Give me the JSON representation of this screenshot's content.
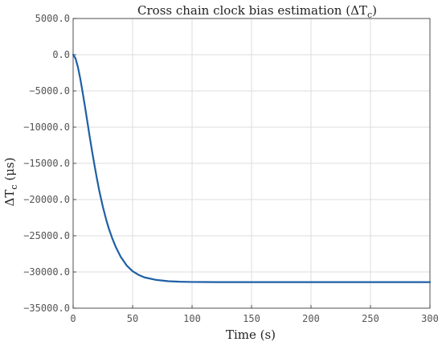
{
  "chart_data": {
    "type": "line",
    "title": "Cross chain clock bias estimation (ΔT_c)",
    "title_parts": {
      "prefix": "Cross chain clock bias estimation (ΔT",
      "sub": "c",
      "suffix": ")"
    },
    "xlabel": "Time (s)",
    "ylabel": "ΔT_c (μs)",
    "ylabel_parts": {
      "prefix": "ΔT",
      "sub": "c",
      "suffix": " (μs)"
    },
    "xlim": [
      0,
      300
    ],
    "ylim": [
      -35000,
      5000
    ],
    "grid": true,
    "x_ticks": [
      0,
      50,
      100,
      150,
      200,
      250,
      300
    ],
    "x_tick_labels": [
      "0",
      "50",
      "100",
      "150",
      "200",
      "250",
      "300"
    ],
    "y_ticks": [
      5000,
      0,
      -5000,
      -10000,
      -15000,
      -20000,
      -25000,
      -30000,
      -35000
    ],
    "y_tick_labels": [
      "5000.0",
      "0.0",
      "−5000.0",
      "−10000.0",
      "−15000.0",
      "−20000.0",
      "−25000.0",
      "−30000.0",
      "−35000.0"
    ],
    "series": [
      {
        "color": "#1f5fa5",
        "x": [
          0,
          2,
          4,
          6,
          8,
          10,
          12,
          14,
          16,
          18,
          20,
          22,
          25,
          28,
          30,
          33,
          36,
          40,
          45,
          50,
          55,
          60,
          70,
          80,
          90,
          100,
          120,
          150,
          200,
          250,
          300
        ],
        "y": [
          0,
          -500,
          -1700,
          -3300,
          -5200,
          -7200,
          -9300,
          -11400,
          -13400,
          -15300,
          -17100,
          -18800,
          -21000,
          -22900,
          -24000,
          -25400,
          -26600,
          -27900,
          -29100,
          -29900,
          -30400,
          -30750,
          -31100,
          -31280,
          -31350,
          -31380,
          -31400,
          -31400,
          -31400,
          -31400,
          -31400
        ]
      }
    ]
  }
}
